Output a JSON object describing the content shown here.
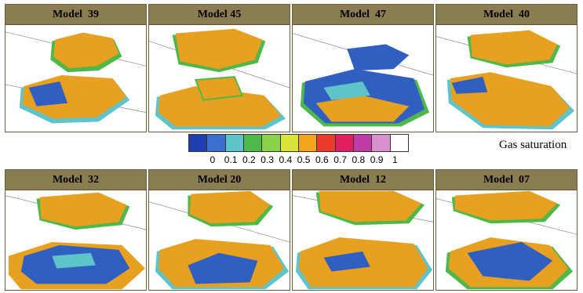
{
  "panels_top": [
    {
      "title": "Model  39"
    },
    {
      "title": "Model 45"
    },
    {
      "title": "Model  47"
    },
    {
      "title": "Model  40"
    }
  ],
  "panels_bottom": [
    {
      "title": "Model  32"
    },
    {
      "title": "Model 20"
    },
    {
      "title": "Model  12"
    },
    {
      "title": "Model  07"
    }
  ],
  "legend": {
    "label": "Gas saturation",
    "ticks": [
      "0",
      "0.1",
      "0.2",
      "0.3",
      "0.4",
      "0.5",
      "0.6",
      "0.7",
      "0.8",
      "0.9",
      "1"
    ],
    "colors": [
      "#1f3fb0",
      "#3a6fd0",
      "#5fc4c9",
      "#4fb84a",
      "#8bd14a",
      "#d9e43a",
      "#f2a51c",
      "#ea3a2a",
      "#e02060",
      "#c03aa8",
      "#d890d0",
      "#ffffff"
    ]
  },
  "colors": {
    "title_bar": "#8b7d52",
    "sand_orange": "#e8a020",
    "edge_green": "#4fb84a",
    "edge_cyan": "#5fc4c9",
    "water_blue": "#2f5fc0"
  }
}
